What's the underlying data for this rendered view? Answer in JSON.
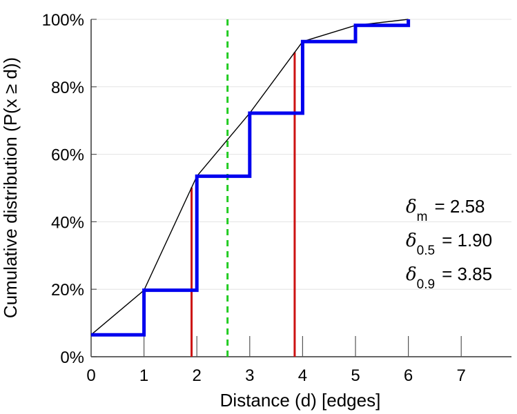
{
  "chart_data": {
    "type": "line",
    "xlabel": "Distance (d) [edges]",
    "ylabel": "Cumulative distribution (P(x ≥ d))",
    "xlim": [
      0,
      8
    ],
    "ylim": [
      0,
      100
    ],
    "x_ticks": [
      "0",
      "1",
      "2",
      "3",
      "4",
      "5",
      "6",
      "7"
    ],
    "y_ticks": [
      "0%",
      "20%",
      "40%",
      "60%",
      "80%",
      "100%"
    ],
    "grid": "horizontal",
    "series": [
      {
        "style": "step",
        "color": "#0000ee",
        "x": [
          0,
          1,
          2,
          3,
          4,
          5,
          6
        ],
        "y": [
          6.5,
          19.7,
          53.5,
          72.2,
          93.4,
          98.2,
          100
        ]
      },
      {
        "style": "line",
        "color": "#000000",
        "x": [
          0,
          1,
          2,
          3,
          4,
          5,
          6
        ],
        "y": [
          6.5,
          19.7,
          53.5,
          72.2,
          93.4,
          98.2,
          100
        ]
      }
    ],
    "vlines": [
      {
        "x": 2.58,
        "color": "#22cc22",
        "style": "dashed",
        "full_height": true
      },
      {
        "x": 1.9,
        "color": "#cc1111",
        "style": "solid",
        "full_height": false
      },
      {
        "x": 3.85,
        "color": "#cc1111",
        "style": "solid",
        "full_height": false
      }
    ],
    "annotations": [
      {
        "symbol": "δ",
        "sub": "m",
        "text": "= 2.58"
      },
      {
        "symbol": "δ",
        "sub": "0.5",
        "text": "= 1.90"
      },
      {
        "symbol": "δ",
        "sub": "0.9",
        "text": "= 3.85"
      }
    ]
  }
}
